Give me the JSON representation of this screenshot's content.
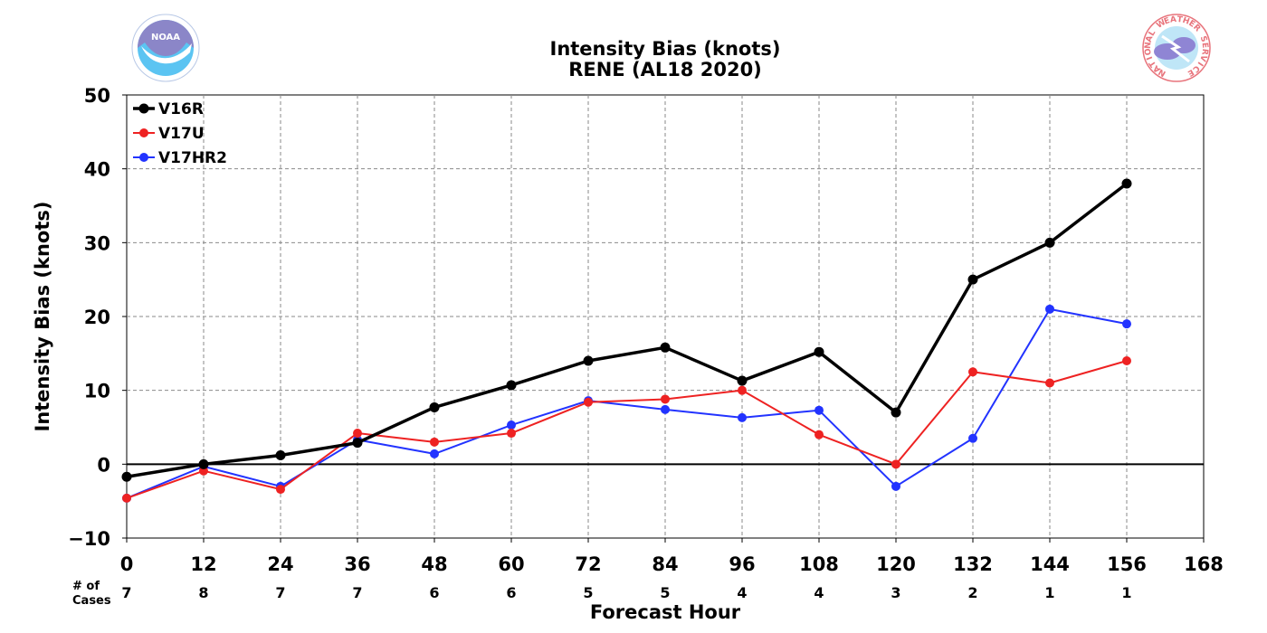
{
  "chart_data": {
    "type": "line",
    "title": "Intensity Bias (knots)",
    "subtitle": "RENE (AL18 2020)",
    "xlabel": "Forecast Hour",
    "ylabel": "Intensity Bias (knots)",
    "xlim": [
      0,
      168
    ],
    "ylim": [
      -10,
      50
    ],
    "xticks": [
      0,
      12,
      24,
      36,
      48,
      60,
      72,
      84,
      96,
      108,
      120,
      132,
      144,
      156,
      168
    ],
    "yticks": [
      -10,
      0,
      10,
      20,
      30,
      40,
      50
    ],
    "ytick_labels": [
      "−10",
      "0",
      "10",
      "20",
      "30",
      "40",
      "50"
    ],
    "grid": true,
    "legend_position": "top-left",
    "cases_label": [
      "# of",
      "Cases"
    ],
    "cases_hours": [
      0,
      12,
      24,
      36,
      48,
      60,
      72,
      84,
      96,
      108,
      120,
      132,
      144,
      156
    ],
    "cases": [
      7,
      8,
      7,
      7,
      6,
      6,
      5,
      5,
      4,
      4,
      3,
      2,
      1,
      1
    ],
    "x": [
      0,
      12,
      24,
      36,
      48,
      60,
      72,
      84,
      96,
      108,
      120,
      132,
      144,
      156
    ],
    "series": [
      {
        "name": "V16R",
        "color": "#000000",
        "values": [
          -1.7,
          0.0,
          1.2,
          2.9,
          7.7,
          10.7,
          14.0,
          15.8,
          11.3,
          15.2,
          7.0,
          25.0,
          30.0,
          38.0
        ]
      },
      {
        "name": "V17U",
        "color": "#ee2222",
        "values": [
          -4.6,
          -0.9,
          -3.4,
          4.2,
          3.0,
          4.2,
          8.4,
          8.8,
          10.0,
          4.0,
          0.0,
          12.5,
          11.0,
          14.0
        ]
      },
      {
        "name": "V17HR2",
        "color": "#2233ff",
        "values": [
          -4.6,
          -0.3,
          -3.0,
          3.3,
          1.4,
          5.3,
          8.6,
          7.4,
          6.3,
          7.3,
          -3.0,
          3.5,
          21.0,
          19.0
        ]
      }
    ]
  },
  "logos": {
    "left": {
      "icon": "noaa-logo-icon",
      "text": "NOAA",
      "color": "#4b9fdc"
    },
    "right": {
      "icon": "nws-logo-icon",
      "text": "NATIONAL WEATHER SERVICE",
      "color": "#e8747c"
    }
  }
}
